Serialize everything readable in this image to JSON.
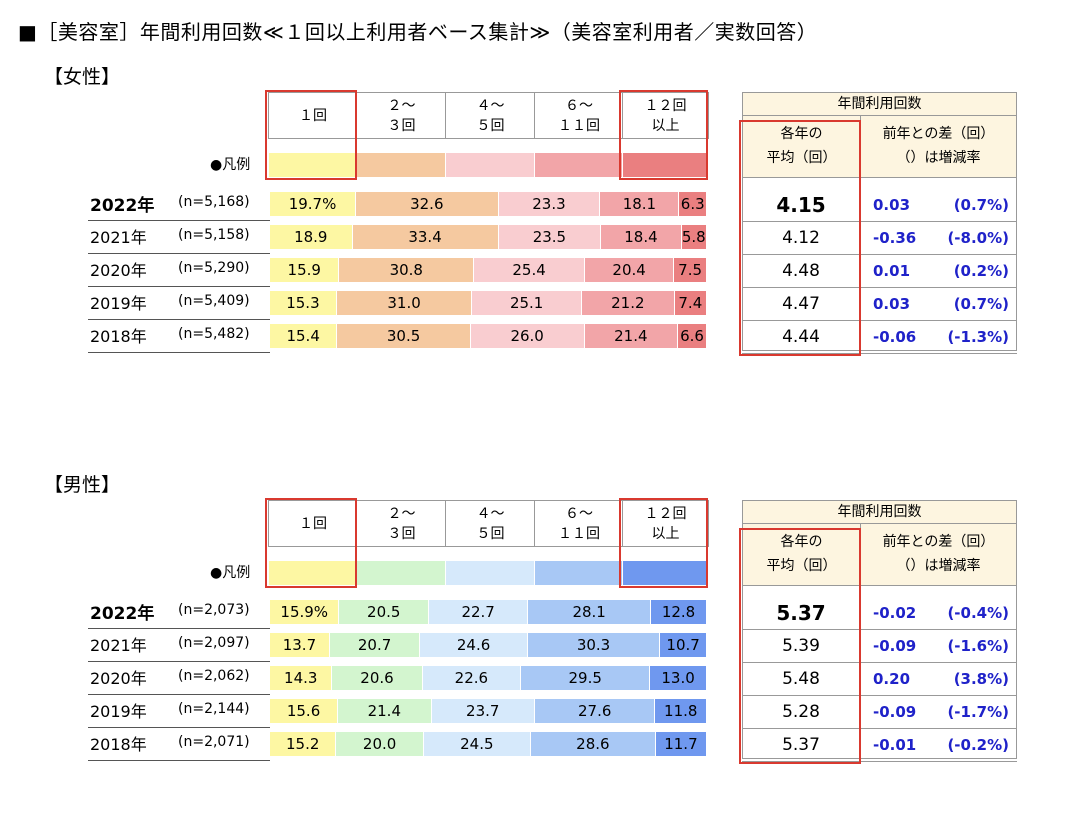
{
  "title": "■［美容室］年間利用回数≪１回以上利用者ベース集計≫（美容室利用者／実数回答）",
  "legend_label": "●凡例",
  "table_header": "年間利用回数",
  "col_avg": "各年の\n平均（回）",
  "col_diff": "前年との差（回）\n（）は増減率",
  "categories": [
    "１回",
    "２～\n３回",
    "４～\n５回",
    "６～\n１１回",
    "１２回\n以上"
  ],
  "chart_data": [
    {
      "type": "bar",
      "section": "【女性】",
      "categories": [
        "１回",
        "２～３回",
        "４～５回",
        "６～１１回",
        "１２回以上"
      ],
      "colors": [
        "#fdf7a3",
        "#f5c9a0",
        "#f9cdd0",
        "#f2a5a8",
        "#ea7f80"
      ],
      "rows": [
        {
          "year": "2022年",
          "n": "(n=5,168)",
          "labels": [
            "19.7%",
            "32.6",
            "23.3",
            "18.1",
            "6.3"
          ],
          "values": [
            19.7,
            32.6,
            23.3,
            18.1,
            6.3
          ],
          "avg": "4.15",
          "diff": "0.03",
          "rate": "(0.7%)"
        },
        {
          "year": "2021年",
          "n": "(n=5,158)",
          "labels": [
            "18.9",
            "33.4",
            "23.5",
            "18.4",
            "5.8"
          ],
          "values": [
            18.9,
            33.4,
            23.5,
            18.4,
            5.8
          ],
          "avg": "4.12",
          "diff": "-0.36",
          "rate": "(-8.0%)"
        },
        {
          "year": "2020年",
          "n": "(n=5,290)",
          "labels": [
            "15.9",
            "30.8",
            "25.4",
            "20.4",
            "7.5"
          ],
          "values": [
            15.9,
            30.8,
            25.4,
            20.4,
            7.5
          ],
          "avg": "4.48",
          "diff": "0.01",
          "rate": "(0.2%)"
        },
        {
          "year": "2019年",
          "n": "(n=5,409)",
          "labels": [
            "15.3",
            "31.0",
            "25.1",
            "21.2",
            "7.4"
          ],
          "values": [
            15.3,
            31.0,
            25.1,
            21.2,
            7.4
          ],
          "avg": "4.47",
          "diff": "0.03",
          "rate": "(0.7%)"
        },
        {
          "year": "2018年",
          "n": "(n=5,482)",
          "labels": [
            "15.4",
            "30.5",
            "26.0",
            "21.4",
            "6.6"
          ],
          "values": [
            15.4,
            30.5,
            26.0,
            21.4,
            6.6
          ],
          "avg": "4.44",
          "diff": "-0.06",
          "rate": "(-1.3%)"
        }
      ]
    },
    {
      "type": "bar",
      "section": "【男性】",
      "categories": [
        "１回",
        "２～３回",
        "４～５回",
        "６～１１回",
        "１２回以上"
      ],
      "colors": [
        "#fdf7a3",
        "#d3f5cf",
        "#d6e9fb",
        "#a8c8f5",
        "#6f98ef"
      ],
      "rows": [
        {
          "year": "2022年",
          "n": "(n=2,073)",
          "labels": [
            "15.9%",
            "20.5",
            "22.7",
            "28.1",
            "12.8"
          ],
          "values": [
            15.9,
            20.5,
            22.7,
            28.1,
            12.8
          ],
          "avg": "5.37",
          "diff": "-0.02",
          "rate": "(-0.4%)"
        },
        {
          "year": "2021年",
          "n": "(n=2,097)",
          "labels": [
            "13.7",
            "20.7",
            "24.6",
            "30.3",
            "10.7"
          ],
          "values": [
            13.7,
            20.7,
            24.6,
            30.3,
            10.7
          ],
          "avg": "5.39",
          "diff": "-0.09",
          "rate": "(-1.6%)"
        },
        {
          "year": "2020年",
          "n": "(n=2,062)",
          "labels": [
            "14.3",
            "20.6",
            "22.6",
            "29.5",
            "13.0"
          ],
          "values": [
            14.3,
            20.6,
            22.6,
            29.5,
            13.0
          ],
          "avg": "5.48",
          "diff": "0.20",
          "rate": "(3.8%)"
        },
        {
          "year": "2019年",
          "n": "(n=2,144)",
          "labels": [
            "15.6",
            "21.4",
            "23.7",
            "27.6",
            "11.8"
          ],
          "values": [
            15.6,
            21.4,
            23.7,
            27.6,
            11.8
          ],
          "avg": "5.28",
          "diff": "-0.09",
          "rate": "(-1.7%)"
        },
        {
          "year": "2018年",
          "n": "(n=2,071)",
          "labels": [
            "15.2",
            "20.0",
            "24.5",
            "28.6",
            "11.7"
          ],
          "values": [
            15.2,
            20.0,
            24.5,
            28.6,
            11.7
          ],
          "avg": "5.37",
          "diff": "-0.01",
          "rate": "(-0.2%)"
        }
      ]
    }
  ]
}
